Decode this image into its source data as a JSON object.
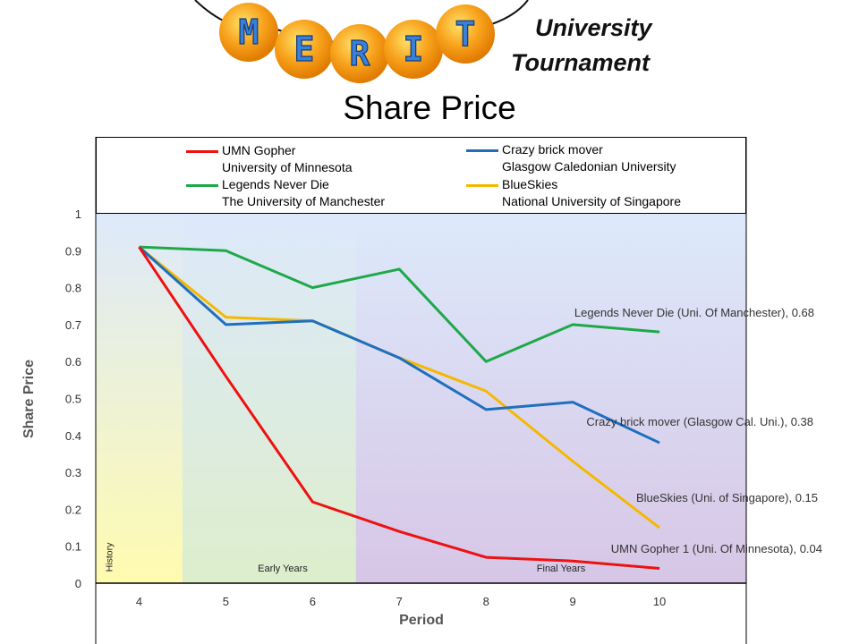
{
  "header": {
    "logo_letters": [
      "M",
      "E",
      "R",
      "I",
      "T"
    ],
    "brand_line1": "University",
    "brand_line2": "Tournament"
  },
  "chart_data": {
    "type": "line",
    "title": "Share Price",
    "xlabel": "Period",
    "ylabel": "Share Price",
    "x": [
      4,
      5,
      6,
      7,
      8,
      9,
      10
    ],
    "ylim": [
      0,
      1
    ],
    "yticks": [
      "0",
      "0.1",
      "0.2",
      "0.3",
      "0.4",
      "0.5",
      "0.6",
      "0.7",
      "0.8",
      "0.9",
      "1"
    ],
    "xticks": [
      "4",
      "5",
      "6",
      "7",
      "8",
      "9",
      "10"
    ],
    "legend_placement": "top",
    "series": [
      {
        "name": "UMN Gopher",
        "institution": "University of Minnesota",
        "color": "#ee1111",
        "values": [
          0.91,
          0.56,
          0.22,
          0.14,
          0.07,
          0.06,
          0.04
        ],
        "end_label": "UMN Gopher 1 (Uni. Of Minnesota), 0.04"
      },
      {
        "name": "Crazy brick mover",
        "institution": "Glasgow Caledonian University",
        "color": "#1f6fbf",
        "values": [
          0.91,
          0.7,
          0.71,
          0.61,
          0.47,
          0.49,
          0.38
        ],
        "end_label": "Crazy brick mover  (Glasgow Cal. Uni.), 0.38"
      },
      {
        "name": "Legends Never Die",
        "institution": "The University of Manchester",
        "color": "#1fa84a",
        "values": [
          0.91,
          0.9,
          0.8,
          0.85,
          0.6,
          0.7,
          0.68
        ],
        "end_label": "Legends Never Die (Uni. Of Manchester), 0.68"
      },
      {
        "name": "BlueSkies",
        "institution": "National University of Singapore",
        "color": "#f5b800",
        "values": [
          0.91,
          0.72,
          0.71,
          0.61,
          0.52,
          0.33,
          0.15
        ],
        "end_label": "BlueSkies (Uni. of Singapore),  0.15"
      }
    ],
    "phases": [
      {
        "label": "History",
        "from": 3.5,
        "to": 4.5,
        "color": "#fffbb0"
      },
      {
        "label": "Early Years",
        "from": 4.5,
        "to": 6.5,
        "color": "#ddeecc"
      },
      {
        "label": "Final Years",
        "from": 6.5,
        "to": 11.0,
        "color": "#d7c6e6"
      }
    ]
  }
}
